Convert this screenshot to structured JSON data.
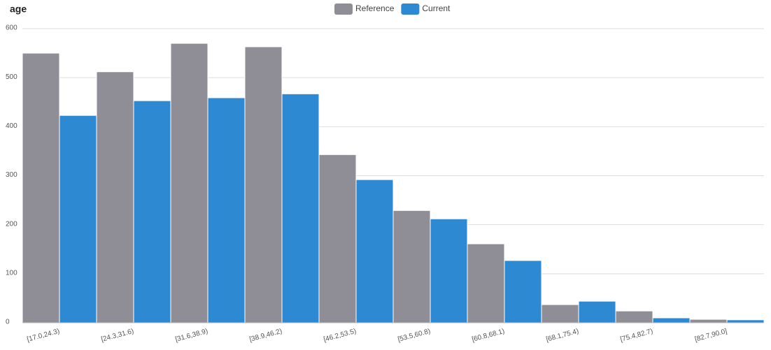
{
  "chart_data": {
    "type": "bar",
    "title": "age",
    "categories": [
      "[17.0,24.3)",
      "[24.3,31.6)",
      "[31.6,38.9)",
      "[38.9,46.2)",
      "[46.2,53.5)",
      "[53.5,60.8)",
      "[60.8,68.1)",
      "[68.1,75.4)",
      "[75.4,82.7)",
      "[82.7,90.0]"
    ],
    "series": [
      {
        "name": "Reference",
        "color": "#8f8d96",
        "values": [
          550,
          512,
          570,
          563,
          343,
          229,
          161,
          37,
          24,
          7
        ]
      },
      {
        "name": "Current",
        "color": "#2e89d3",
        "values": [
          423,
          453,
          459,
          467,
          292,
          212,
          127,
          44,
          10,
          6
        ]
      }
    ],
    "ylim": [
      0,
      600
    ],
    "yticks": [
      0,
      100,
      200,
      300,
      400,
      500,
      600
    ],
    "grid": true
  }
}
